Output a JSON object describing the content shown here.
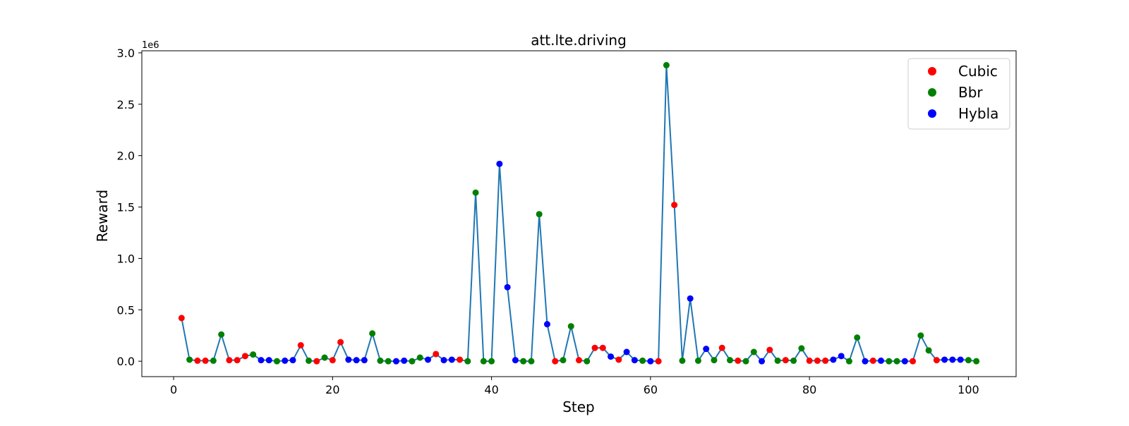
{
  "chart_data": {
    "type": "line",
    "title": "att.lte.driving",
    "xlabel": "Step",
    "ylabel": "Reward",
    "y_offset_label": "1e6",
    "y_scale_factor": 1000000,
    "xlim": [
      -4,
      106
    ],
    "ylim": [
      -0.15,
      3.02
    ],
    "x_ticks": [
      0,
      20,
      40,
      60,
      80,
      100
    ],
    "x_tick_labels": [
      "0",
      "20",
      "40",
      "60",
      "80",
      "100"
    ],
    "y_ticks": [
      0.0,
      0.5,
      1.0,
      1.5,
      2.0,
      2.5,
      3.0
    ],
    "y_tick_labels": [
      "0.0",
      "0.5",
      "1.0",
      "1.5",
      "2.0",
      "2.5",
      "3.0"
    ],
    "grid": false,
    "line_color": "#1f77b4",
    "legend_position": "top-right",
    "legend": [
      {
        "key": "cubic",
        "label": "Cubic",
        "color": "#ff0000"
      },
      {
        "key": "bbr",
        "label": "Bbr",
        "color": "#008000"
      },
      {
        "key": "hybla",
        "label": "Hybla",
        "color": "#0000ff"
      }
    ],
    "points": [
      {
        "x": 1,
        "y": 0.42,
        "series": "cubic"
      },
      {
        "x": 2,
        "y": 0.015,
        "series": "bbr"
      },
      {
        "x": 3,
        "y": 0.005,
        "series": "cubic"
      },
      {
        "x": 4,
        "y": 0.005,
        "series": "cubic"
      },
      {
        "x": 5,
        "y": 0.005,
        "series": "bbr"
      },
      {
        "x": 6,
        "y": 0.26,
        "series": "bbr"
      },
      {
        "x": 7,
        "y": 0.01,
        "series": "cubic"
      },
      {
        "x": 8,
        "y": 0.01,
        "series": "cubic"
      },
      {
        "x": 9,
        "y": 0.05,
        "series": "cubic"
      },
      {
        "x": 10,
        "y": 0.065,
        "series": "bbr"
      },
      {
        "x": 11,
        "y": 0.01,
        "series": "hybla"
      },
      {
        "x": 12,
        "y": 0.01,
        "series": "hybla"
      },
      {
        "x": 13,
        "y": 0.0,
        "series": "bbr"
      },
      {
        "x": 14,
        "y": 0.005,
        "series": "hybla"
      },
      {
        "x": 15,
        "y": 0.01,
        "series": "hybla"
      },
      {
        "x": 16,
        "y": 0.155,
        "series": "cubic"
      },
      {
        "x": 17,
        "y": 0.005,
        "series": "bbr"
      },
      {
        "x": 18,
        "y": 0.0,
        "series": "cubic"
      },
      {
        "x": 19,
        "y": 0.035,
        "series": "bbr"
      },
      {
        "x": 20,
        "y": 0.01,
        "series": "cubic"
      },
      {
        "x": 21,
        "y": 0.185,
        "series": "cubic"
      },
      {
        "x": 22,
        "y": 0.015,
        "series": "hybla"
      },
      {
        "x": 23,
        "y": 0.01,
        "series": "hybla"
      },
      {
        "x": 24,
        "y": 0.01,
        "series": "hybla"
      },
      {
        "x": 25,
        "y": 0.27,
        "series": "bbr"
      },
      {
        "x": 26,
        "y": 0.005,
        "series": "bbr"
      },
      {
        "x": 27,
        "y": 0.0,
        "series": "bbr"
      },
      {
        "x": 28,
        "y": 0.0,
        "series": "hybla"
      },
      {
        "x": 29,
        "y": 0.005,
        "series": "hybla"
      },
      {
        "x": 30,
        "y": 0.0,
        "series": "bbr"
      },
      {
        "x": 31,
        "y": 0.035,
        "series": "bbr"
      },
      {
        "x": 32,
        "y": 0.015,
        "series": "hybla"
      },
      {
        "x": 33,
        "y": 0.07,
        "series": "cubic"
      },
      {
        "x": 34,
        "y": 0.01,
        "series": "hybla"
      },
      {
        "x": 35,
        "y": 0.015,
        "series": "hybla"
      },
      {
        "x": 36,
        "y": 0.015,
        "series": "cubic"
      },
      {
        "x": 37,
        "y": 0.0,
        "series": "bbr"
      },
      {
        "x": 38,
        "y": 1.64,
        "series": "bbr"
      },
      {
        "x": 39,
        "y": 0.0,
        "series": "bbr"
      },
      {
        "x": 40,
        "y": 0.0,
        "series": "bbr"
      },
      {
        "x": 41,
        "y": 1.92,
        "series": "hybla"
      },
      {
        "x": 42,
        "y": 0.72,
        "series": "hybla"
      },
      {
        "x": 43,
        "y": 0.01,
        "series": "hybla"
      },
      {
        "x": 44,
        "y": 0.0,
        "series": "bbr"
      },
      {
        "x": 45,
        "y": 0.0,
        "series": "bbr"
      },
      {
        "x": 46,
        "y": 1.43,
        "series": "bbr"
      },
      {
        "x": 47,
        "y": 0.36,
        "series": "hybla"
      },
      {
        "x": 48,
        "y": 0.0,
        "series": "cubic"
      },
      {
        "x": 49,
        "y": 0.01,
        "series": "bbr"
      },
      {
        "x": 50,
        "y": 0.34,
        "series": "bbr"
      },
      {
        "x": 51,
        "y": 0.01,
        "series": "cubic"
      },
      {
        "x": 52,
        "y": 0.0,
        "series": "bbr"
      },
      {
        "x": 53,
        "y": 0.13,
        "series": "cubic"
      },
      {
        "x": 54,
        "y": 0.13,
        "series": "cubic"
      },
      {
        "x": 55,
        "y": 0.045,
        "series": "hybla"
      },
      {
        "x": 56,
        "y": 0.015,
        "series": "cubic"
      },
      {
        "x": 57,
        "y": 0.09,
        "series": "hybla"
      },
      {
        "x": 58,
        "y": 0.01,
        "series": "hybla"
      },
      {
        "x": 59,
        "y": 0.005,
        "series": "bbr"
      },
      {
        "x": 60,
        "y": 0.0,
        "series": "hybla"
      },
      {
        "x": 61,
        "y": 0.0,
        "series": "cubic"
      },
      {
        "x": 62,
        "y": 2.88,
        "series": "bbr"
      },
      {
        "x": 63,
        "y": 1.52,
        "series": "cubic"
      },
      {
        "x": 64,
        "y": 0.005,
        "series": "bbr"
      },
      {
        "x": 65,
        "y": 0.61,
        "series": "hybla"
      },
      {
        "x": 66,
        "y": 0.005,
        "series": "bbr"
      },
      {
        "x": 67,
        "y": 0.12,
        "series": "hybla"
      },
      {
        "x": 68,
        "y": 0.01,
        "series": "bbr"
      },
      {
        "x": 69,
        "y": 0.13,
        "series": "cubic"
      },
      {
        "x": 70,
        "y": 0.01,
        "series": "bbr"
      },
      {
        "x": 71,
        "y": 0.005,
        "series": "cubic"
      },
      {
        "x": 72,
        "y": 0.0,
        "series": "bbr"
      },
      {
        "x": 73,
        "y": 0.09,
        "series": "bbr"
      },
      {
        "x": 74,
        "y": 0.0,
        "series": "hybla"
      },
      {
        "x": 75,
        "y": 0.11,
        "series": "cubic"
      },
      {
        "x": 76,
        "y": 0.005,
        "series": "bbr"
      },
      {
        "x": 77,
        "y": 0.01,
        "series": "cubic"
      },
      {
        "x": 78,
        "y": 0.005,
        "series": "bbr"
      },
      {
        "x": 79,
        "y": 0.125,
        "series": "bbr"
      },
      {
        "x": 80,
        "y": 0.005,
        "series": "cubic"
      },
      {
        "x": 81,
        "y": 0.005,
        "series": "cubic"
      },
      {
        "x": 82,
        "y": 0.005,
        "series": "cubic"
      },
      {
        "x": 83,
        "y": 0.015,
        "series": "hybla"
      },
      {
        "x": 84,
        "y": 0.05,
        "series": "hybla"
      },
      {
        "x": 85,
        "y": 0.0,
        "series": "bbr"
      },
      {
        "x": 86,
        "y": 0.23,
        "series": "bbr"
      },
      {
        "x": 87,
        "y": 0.0,
        "series": "hybla"
      },
      {
        "x": 88,
        "y": 0.005,
        "series": "cubic"
      },
      {
        "x": 89,
        "y": 0.005,
        "series": "hybla"
      },
      {
        "x": 90,
        "y": 0.0,
        "series": "bbr"
      },
      {
        "x": 91,
        "y": 0.0,
        "series": "bbr"
      },
      {
        "x": 92,
        "y": 0.0,
        "series": "hybla"
      },
      {
        "x": 93,
        "y": 0.0,
        "series": "cubic"
      },
      {
        "x": 94,
        "y": 0.25,
        "series": "bbr"
      },
      {
        "x": 95,
        "y": 0.105,
        "series": "bbr"
      },
      {
        "x": 96,
        "y": 0.01,
        "series": "cubic"
      },
      {
        "x": 97,
        "y": 0.015,
        "series": "hybla"
      },
      {
        "x": 98,
        "y": 0.015,
        "series": "hybla"
      },
      {
        "x": 99,
        "y": 0.015,
        "series": "hybla"
      },
      {
        "x": 100,
        "y": 0.01,
        "series": "bbr"
      },
      {
        "x": 101,
        "y": 0.0,
        "series": "bbr"
      }
    ]
  }
}
